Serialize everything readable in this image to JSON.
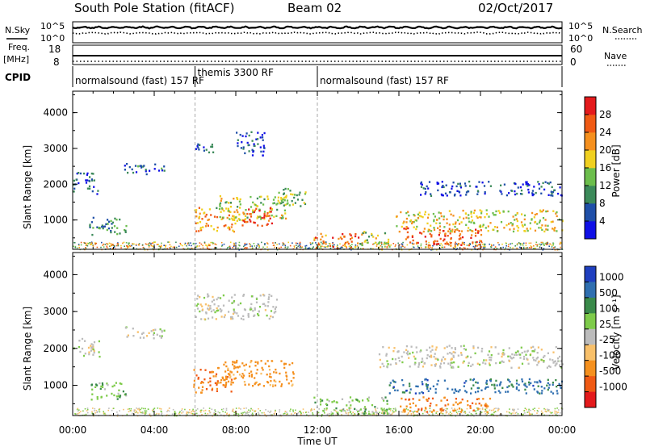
{
  "header": {
    "station": "South Pole Station (fitACF)",
    "beam": "Beam 02",
    "date": "02/Oct/2017"
  },
  "aux_panels": {
    "nsky_label": "N.Sky",
    "nsky_ticks": [
      "10^5",
      "10^0"
    ],
    "nsearch_label": "N.Search",
    "nsearch_ticks": [
      "10^5",
      "10^0"
    ],
    "freq_label": "Freq.",
    "freq_unit": "[MHz]",
    "freq_ticks": [
      "18",
      "8"
    ],
    "nave_label": "Nave",
    "nave_ticks": [
      "60",
      "0"
    ],
    "cpid_label": "CPID"
  },
  "cpid_segments": [
    {
      "start": 0,
      "end": 6,
      "label": "normalsound (fast) 157 RF"
    },
    {
      "start": 6,
      "end": 12,
      "label": "themis 3300 RF"
    },
    {
      "start": 12,
      "end": 24,
      "label": "normalsound (fast) 157 RF"
    }
  ],
  "chart_data": [
    {
      "type": "heatmap",
      "name": "power",
      "ylabel": "Slant Range [km]",
      "ylim": [
        180,
        4600
      ],
      "yticks": [
        "1000",
        "2000",
        "3000",
        "4000"
      ],
      "xlim": [
        0,
        24
      ],
      "colorbar_label": "Power [dB]",
      "colorbar_ticks": [
        "4",
        "8",
        "12",
        "16",
        "20",
        "24",
        "28"
      ],
      "colorbar_colors": [
        "#1010e6",
        "#1f4fa8",
        "#3c8a5a",
        "#6cbe4c",
        "#f0d020",
        "#f5901e",
        "#f05a14",
        "#e41a1c"
      ],
      "regions": [
        {
          "t": [
            0.0,
            1.2
          ],
          "r": [
            1750,
            2350
          ],
          "v": 5
        },
        {
          "t": [
            0.8,
            2.6
          ],
          "r": [
            600,
            1100
          ],
          "v": 10
        },
        {
          "t": [
            2.5,
            4.5
          ],
          "r": [
            2300,
            2600
          ],
          "v": 7
        },
        {
          "t": [
            5.9,
            8.0
          ],
          "r": [
            700,
            1400
          ],
          "v": 22
        },
        {
          "t": [
            7.0,
            10.5
          ],
          "r": [
            1000,
            1700
          ],
          "v": 16
        },
        {
          "t": [
            8.2,
            9.8
          ],
          "r": [
            850,
            1350
          ],
          "v": 27
        },
        {
          "t": [
            8.0,
            9.4
          ],
          "r": [
            2800,
            3500
          ],
          "v": 6
        },
        {
          "t": [
            6.0,
            7.0
          ],
          "r": [
            2900,
            3200
          ],
          "v": 7
        },
        {
          "t": [
            10.0,
            11.5
          ],
          "r": [
            1400,
            1900
          ],
          "v": 14
        },
        {
          "t": [
            11.8,
            14.0
          ],
          "r": [
            250,
            650
          ],
          "v": 25
        },
        {
          "t": [
            14.0,
            15.5
          ],
          "r": [
            250,
            700
          ],
          "v": 17
        },
        {
          "t": [
            15.8,
            24.0
          ],
          "r": [
            700,
            1300
          ],
          "v": 18
        },
        {
          "t": [
            16.2,
            20.0
          ],
          "r": [
            300,
            800
          ],
          "v": 26
        },
        {
          "t": [
            17.0,
            24.0
          ],
          "r": [
            1700,
            2100
          ],
          "v": 5
        }
      ]
    },
    {
      "type": "heatmap",
      "name": "velocity",
      "ylabel": "Slant Range [km]",
      "ylim": [
        180,
        4600
      ],
      "yticks": [
        "1000",
        "2000",
        "3000",
        "4000"
      ],
      "xlim": [
        0,
        24
      ],
      "xticks": [
        "00:00",
        "04:00",
        "08:00",
        "12:00",
        "16:00",
        "20:00",
        "00:00"
      ],
      "xlabel": "Time UT",
      "colorbar_label": "Velocity [m s⁻¹]",
      "colorbar_ticks": [
        "1000",
        "500",
        "100",
        "25",
        "-25",
        "-100",
        "-500",
        "-1000"
      ],
      "colorbar_colors": [
        "#1f3fbf",
        "#2f6fb0",
        "#3a8a4a",
        "#7ecb4a",
        "#bcbcbc",
        "#f8c06a",
        "#f5901e",
        "#f05a14",
        "#e41a1c"
      ],
      "regions": [
        {
          "t": [
            0.0,
            1.3
          ],
          "r": [
            1800,
            2300
          ],
          "v": 0
        },
        {
          "t": [
            0.8,
            2.6
          ],
          "r": [
            600,
            1100
          ],
          "v": 60
        },
        {
          "t": [
            2.5,
            4.5
          ],
          "r": [
            2300,
            2600
          ],
          "v": 0
        },
        {
          "t": [
            5.9,
            7.8
          ],
          "r": [
            800,
            1450
          ],
          "v": -420
        },
        {
          "t": [
            7.0,
            10.8
          ],
          "r": [
            1000,
            1700
          ],
          "v": -200
        },
        {
          "t": [
            6.0,
            10.0
          ],
          "r": [
            2800,
            3500
          ],
          "v": 0
        },
        {
          "t": [
            11.8,
            15.5
          ],
          "r": [
            250,
            700
          ],
          "v": 60
        },
        {
          "t": [
            15.5,
            24.0
          ],
          "r": [
            800,
            1200
          ],
          "v": 700
        },
        {
          "t": [
            16.0,
            20.5
          ],
          "r": [
            300,
            700
          ],
          "v": -420
        },
        {
          "t": [
            15.0,
            24.0
          ],
          "r": [
            1500,
            2100
          ],
          "v": 0
        }
      ]
    }
  ]
}
